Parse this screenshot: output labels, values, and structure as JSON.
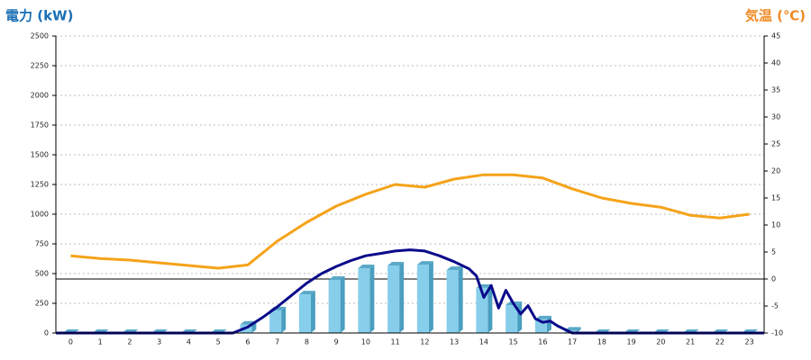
{
  "chart_data": {
    "type": "bar",
    "title_left": "電力 (kW)",
    "title_right": "気温 (℃)",
    "title_left_color": "#1a6fb5",
    "title_right_color": "#f08a24",
    "grid": true,
    "categories": [
      "0",
      "1",
      "2",
      "3",
      "4",
      "5",
      "6",
      "7",
      "8",
      "9",
      "10",
      "11",
      "12",
      "13",
      "14",
      "15",
      "16",
      "17",
      "18",
      "19",
      "20",
      "21",
      "22",
      "23"
    ],
    "xlim": [
      -0.5,
      23.5
    ],
    "ylim": [
      0,
      2500
    ],
    "yticks": [
      0,
      250,
      500,
      750,
      1000,
      1250,
      1500,
      1750,
      2000,
      2250,
      2500
    ],
    "y2lim": [
      -10,
      45
    ],
    "y2ticks": [
      -10,
      -5,
      0,
      5,
      10,
      15,
      20,
      25,
      30,
      35,
      40,
      45
    ],
    "series": [
      {
        "type": "bar",
        "color": "#87ceeb",
        "values": [
          0,
          0,
          0,
          0,
          0,
          0,
          70,
          190,
          325,
          447,
          545,
          568,
          575,
          530,
          380,
          235,
          115,
          20,
          0,
          0,
          0,
          0,
          0,
          0
        ]
      },
      {
        "type": "line",
        "color": "#0a0a8a",
        "x": [
          -0.5,
          5.5,
          6,
          6.5,
          7,
          7.5,
          8,
          8.5,
          9,
          9.5,
          10,
          10.5,
          11,
          11.5,
          12,
          12.5,
          13,
          13.5,
          13.75,
          14,
          14.25,
          14.5,
          14.75,
          15,
          15.25,
          15.5,
          15.75,
          16,
          16.25,
          16.5,
          17,
          23.5
        ],
        "values": [
          0,
          0,
          50,
          130,
          220,
          320,
          420,
          500,
          560,
          610,
          650,
          670,
          690,
          700,
          690,
          650,
          600,
          540,
          480,
          300,
          400,
          210,
          360,
          250,
          160,
          230,
          120,
          90,
          100,
          60,
          0,
          0
        ]
      },
      {
        "type": "line",
        "axis": "y2",
        "color": "#f5a31a",
        "values": [
          4.3,
          3.8,
          3.5,
          3.0,
          2.5,
          2.0,
          2.6,
          7,
          10.5,
          13.5,
          15.7,
          17.5,
          17,
          18.5,
          19.3,
          19.3,
          18.7,
          16.7,
          15,
          14,
          13.3,
          11.8,
          11.3,
          12
        ]
      }
    ]
  }
}
